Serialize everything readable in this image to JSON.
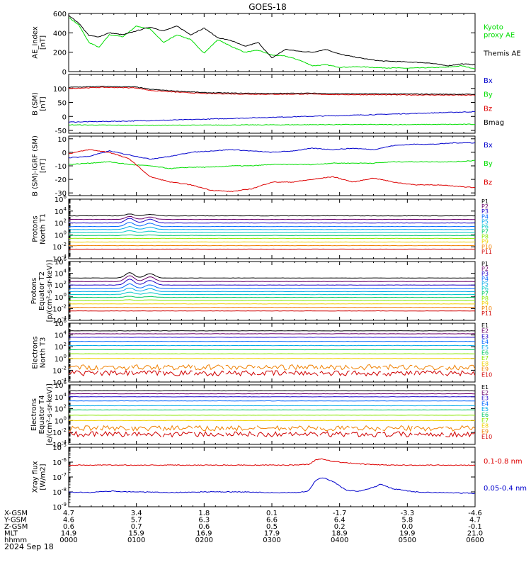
{
  "title": "GOES-18",
  "date_label": "2024 Sep 18",
  "time_axis": {
    "ticks": [
      "0000",
      "0100",
      "0200",
      "0300",
      "0400",
      "0500",
      "0600"
    ],
    "rows": [
      {
        "label": "X-GSM",
        "values": [
          "4.7",
          "3.4",
          "1.8",
          "0.1",
          "-1.7",
          "-3.3",
          "-4.6"
        ]
      },
      {
        "label": "Y-GSM",
        "values": [
          "4.6",
          "5.7",
          "6.3",
          "6.6",
          "6.4",
          "5.8",
          "4.7"
        ]
      },
      {
        "label": "Z-GSM",
        "values": [
          "0.6",
          "0.7",
          "0.6",
          "0.5",
          "0.2",
          "0.0",
          "-0.1"
        ]
      },
      {
        "label": "MLT",
        "values": [
          "14.9",
          "15.9",
          "16.9",
          "17.9",
          "18.9",
          "19.9",
          "21.0"
        ]
      },
      {
        "label": "hhmm",
        "values": [
          "0000",
          "0100",
          "0200",
          "0300",
          "0400",
          "0500",
          "0600"
        ]
      }
    ]
  },
  "colors": {
    "black": "#000000",
    "green": "#00dd00",
    "blue": "#0000cc",
    "red": "#dd0000",
    "flux_channels": [
      "#000000",
      "#6a006a",
      "#1a00c8",
      "#0066ff",
      "#00a8e8",
      "#00c8c8",
      "#00c864",
      "#88e800",
      "#f0d000",
      "#f08000",
      "#d00000"
    ]
  },
  "chart_data": [
    {
      "id": "ae",
      "type": "line",
      "ylabel": [
        "AE_index",
        "[nT]"
      ],
      "yscale": "linear",
      "ylim": [
        0,
        600
      ],
      "yticks": [
        0,
        200,
        400,
        600
      ],
      "series": [
        {
          "name": "Kyoto proxy AE",
          "legend": [
            "Kyoto",
            "proxy AE"
          ],
          "color": "#00dd00",
          "x": [
            0,
            0.15,
            0.3,
            0.45,
            0.6,
            0.8,
            1.0,
            1.2,
            1.4,
            1.6,
            1.8,
            2.0,
            2.2,
            2.4,
            2.6,
            2.8,
            3.0,
            3.2,
            3.4,
            3.6,
            3.8,
            4.0,
            4.3,
            4.6,
            5.0,
            5.3,
            5.6,
            5.8,
            6.0
          ],
          "y": [
            560,
            480,
            300,
            250,
            380,
            360,
            470,
            440,
            300,
            380,
            330,
            190,
            330,
            260,
            200,
            220,
            170,
            160,
            120,
            60,
            70,
            45,
            50,
            40,
            35,
            40,
            45,
            60,
            30
          ]
        },
        {
          "name": "Themis AE",
          "legend": [
            "Themis AE"
          ],
          "color": "#000000",
          "x": [
            0,
            0.15,
            0.3,
            0.45,
            0.6,
            0.8,
            1.0,
            1.2,
            1.4,
            1.6,
            1.8,
            2.0,
            2.2,
            2.4,
            2.6,
            2.8,
            3.0,
            3.2,
            3.4,
            3.6,
            3.8,
            4.0,
            4.3,
            4.6,
            5.0,
            5.3,
            5.6,
            5.8,
            6.0
          ],
          "y": [
            580,
            500,
            370,
            360,
            400,
            380,
            420,
            460,
            420,
            470,
            380,
            450,
            350,
            320,
            260,
            300,
            140,
            230,
            210,
            200,
            230,
            180,
            140,
            110,
            100,
            90,
            60,
            80,
            70
          ]
        }
      ]
    },
    {
      "id": "bsm",
      "type": "line",
      "ylabel": [
        "B (SM)",
        "[nT]"
      ],
      "yscale": "linear",
      "ylim": [
        -60,
        150
      ],
      "yticks": [
        -50,
        0,
        50,
        100
      ],
      "series": [
        {
          "name": "Bx",
          "legend": [
            "Bx"
          ],
          "color": "#0000cc",
          "x": [
            0,
            1,
            2,
            3,
            4,
            5,
            6
          ],
          "y": [
            -20,
            -16,
            -10,
            -3,
            3,
            10,
            17
          ]
        },
        {
          "name": "By",
          "legend": [
            "By"
          ],
          "color": "#00dd00",
          "x": [
            0,
            1,
            2,
            3,
            4,
            5,
            6
          ],
          "y": [
            -30,
            -32,
            -31,
            -30,
            -29,
            -29,
            -28
          ]
        },
        {
          "name": "Bz",
          "legend": [
            "Bz"
          ],
          "color": "#dd0000",
          "x": [
            0,
            0.5,
            1,
            1.2,
            1.5,
            2,
            2.5,
            3,
            3.5,
            4,
            5,
            6
          ],
          "y": [
            100,
            104,
            102,
            93,
            88,
            82,
            80,
            79,
            80,
            78,
            77,
            76
          ]
        },
        {
          "name": "Bmag",
          "legend": [
            "Bmag"
          ],
          "color": "#000000",
          "x": [
            0,
            0.5,
            1,
            1.2,
            1.5,
            2,
            2.5,
            3,
            3.5,
            4,
            5,
            6
          ],
          "y": [
            104,
            107,
            105,
            97,
            92,
            85,
            83,
            82,
            83,
            81,
            80,
            79
          ]
        }
      ]
    },
    {
      "id": "bigrf",
      "type": "line",
      "ylabel": [
        "B (SM)-IGRF (SM)",
        "[nT]"
      ],
      "yscale": "linear",
      "ylim": [
        -32,
        12
      ],
      "yticks": [
        -30,
        -20,
        -10,
        0,
        10
      ],
      "series": [
        {
          "name": "Bx",
          "legend": [
            "Bx"
          ],
          "color": "#0000cc",
          "x": [
            0,
            0.3,
            0.6,
            0.9,
            1.2,
            1.5,
            1.8,
            2.1,
            2.4,
            2.7,
            3.0,
            3.3,
            3.6,
            3.9,
            4.2,
            4.5,
            4.8,
            5.1,
            5.4,
            5.7,
            6.0
          ],
          "y": [
            -4,
            -3,
            1,
            -2,
            -5,
            -3,
            0,
            1,
            2,
            1,
            0,
            1,
            3,
            2,
            3,
            2,
            5,
            6,
            6,
            7,
            7
          ]
        },
        {
          "name": "By",
          "legend": [
            "By"
          ],
          "color": "#00dd00",
          "x": [
            0,
            0.3,
            0.6,
            0.9,
            1.2,
            1.5,
            1.8,
            2.1,
            2.4,
            2.7,
            3.0,
            3.3,
            3.6,
            3.9,
            4.2,
            4.5,
            4.8,
            5.1,
            5.4,
            5.7,
            6.0
          ],
          "y": [
            -9,
            -8,
            -7,
            -9,
            -10,
            -12,
            -11,
            -11,
            -10,
            -10,
            -9,
            -9,
            -9,
            -8,
            -8,
            -8,
            -7,
            -7,
            -7,
            -7,
            -6
          ]
        },
        {
          "name": "Bz",
          "legend": [
            "Bz"
          ],
          "color": "#dd0000",
          "x": [
            0,
            0.3,
            0.6,
            0.9,
            1.2,
            1.5,
            1.8,
            2.1,
            2.4,
            2.7,
            3.0,
            3.3,
            3.6,
            3.9,
            4.2,
            4.5,
            4.8,
            5.1,
            5.4,
            5.7,
            6.0
          ],
          "y": [
            -1,
            2,
            0,
            -5,
            -18,
            -22,
            -24,
            -28,
            -29,
            -27,
            -22,
            -22,
            -20,
            -18,
            -22,
            -19,
            -22,
            -24,
            -24,
            -25,
            -26
          ]
        }
      ]
    },
    {
      "id": "p_t1",
      "type": "line",
      "ylabel": [
        "Protons",
        "North T1"
      ],
      "yscale": "log",
      "ylim": [
        -4,
        6
      ],
      "ytick_exps": [
        -4,
        -2,
        0,
        2,
        4,
        6
      ],
      "channels": [
        "P1",
        "P2",
        "P3",
        "P4",
        "P5",
        "P6",
        "P7",
        "P8",
        "P9",
        "P10",
        "P11"
      ],
      "levels_log10": [
        3.2,
        2.6,
        2.0,
        1.4,
        0.9,
        0.4,
        -0.1,
        -0.6,
        -1.2,
        -1.8,
        -2.4
      ],
      "bump_amplitude_log10": [
        0.3,
        0.5,
        0.8,
        0.7,
        0.5,
        0.3,
        0.1,
        0.0,
        0.0,
        0.0,
        0.0
      ]
    },
    {
      "id": "p_t2",
      "type": "line",
      "ylabel": [
        "Protons",
        "Equator T2",
        "[p/(cm²-s-sr-keV)]"
      ],
      "yscale": "log",
      "ylim": [
        -4,
        6
      ],
      "ytick_exps": [
        -4,
        -2,
        0,
        2,
        4,
        6
      ],
      "channels": [
        "P1",
        "P2",
        "P3",
        "P4",
        "P5",
        "P6",
        "P7",
        "P8",
        "P9",
        "P10",
        "P11"
      ],
      "levels_log10": [
        3.2,
        2.6,
        2.0,
        1.4,
        0.9,
        0.4,
        -0.1,
        -0.6,
        -1.2,
        -1.8,
        -2.4
      ],
      "bump_amplitude_log10": [
        0.9,
        1.0,
        1.0,
        0.8,
        0.6,
        0.4,
        0.2,
        0.1,
        0.0,
        0.0,
        0.0
      ]
    },
    {
      "id": "e_t3",
      "type": "line",
      "ylabel": [
        "Electrons",
        "North T3"
      ],
      "yscale": "log",
      "ylim": [
        -4,
        6
      ],
      "ytick_exps": [
        -4,
        -2,
        0,
        2,
        4,
        6
      ],
      "channels": [
        "E1",
        "E2",
        "E3",
        "E4",
        "E5",
        "E6",
        "E7",
        "E8",
        "E9",
        "E10"
      ],
      "levels_log10": [
        4.7,
        4.2,
        3.6,
        2.9,
        2.2,
        1.5,
        0.8,
        0.0,
        -1.5,
        -2.5
      ],
      "bump_amplitude_log10": [
        0,
        0,
        0,
        0,
        0,
        0,
        0,
        0,
        0,
        0
      ]
    },
    {
      "id": "e_t4",
      "type": "line",
      "ylabel": [
        "Electrons",
        "Equator T4",
        "[e/(cm²-s-sr-keV)]"
      ],
      "yscale": "log",
      "ylim": [
        -4,
        6
      ],
      "ytick_exps": [
        -4,
        -2,
        0,
        2,
        4,
        6
      ],
      "channels": [
        "E1",
        "E2",
        "E3",
        "E4",
        "E5",
        "E6",
        "E7",
        "E8",
        "E9",
        "E10"
      ],
      "levels_log10": [
        5.0,
        4.5,
        4.0,
        3.3,
        2.5,
        1.8,
        0.9,
        0.0,
        -1.3,
        -2.3
      ],
      "bump_amplitude_log10": [
        0,
        0,
        0,
        0,
        0,
        0,
        0,
        0,
        0,
        0
      ]
    },
    {
      "id": "xray",
      "type": "line",
      "ylabel": [
        "Xray flux",
        "[W/m2]"
      ],
      "yscale": "log",
      "ylim": [
        -9,
        -5
      ],
      "ytick_exps": [
        -9,
        -8,
        -7,
        -6,
        -5
      ],
      "series": [
        {
          "name": "0.1-0.8 nm",
          "legend": [
            "0.1-0.8 nm"
          ],
          "color": "#dd0000",
          "x": [
            0,
            0.5,
            1,
            1.5,
            2,
            2.5,
            3,
            3.3,
            3.55,
            3.65,
            3.75,
            3.9,
            4.1,
            4.4,
            4.7,
            5.0,
            5.5,
            6.0
          ],
          "y_log10": [
            -6.2,
            -6.2,
            -6.2,
            -6.2,
            -6.2,
            -6.2,
            -6.2,
            -6.2,
            -6.15,
            -5.85,
            -5.78,
            -5.95,
            -6.05,
            -6.15,
            -6.2,
            -6.2,
            -6.2,
            -6.2
          ]
        },
        {
          "name": "0.05-0.4 nm",
          "legend": [
            "0.05-0.4 nm"
          ],
          "color": "#0000cc",
          "x": [
            0,
            0.3,
            0.6,
            1,
            1.5,
            2,
            2.5,
            3,
            3.4,
            3.55,
            3.65,
            3.75,
            3.9,
            4.1,
            4.3,
            4.5,
            4.6,
            4.8,
            5.1,
            5.5,
            6.0
          ],
          "y_log10": [
            -8.0,
            -8.05,
            -7.95,
            -8.0,
            -8.05,
            -8.0,
            -8.0,
            -8.05,
            -8.05,
            -7.9,
            -7.2,
            -7.05,
            -7.3,
            -7.9,
            -7.95,
            -7.7,
            -7.5,
            -7.8,
            -8.0,
            -8.05,
            -8.1
          ]
        }
      ]
    }
  ]
}
